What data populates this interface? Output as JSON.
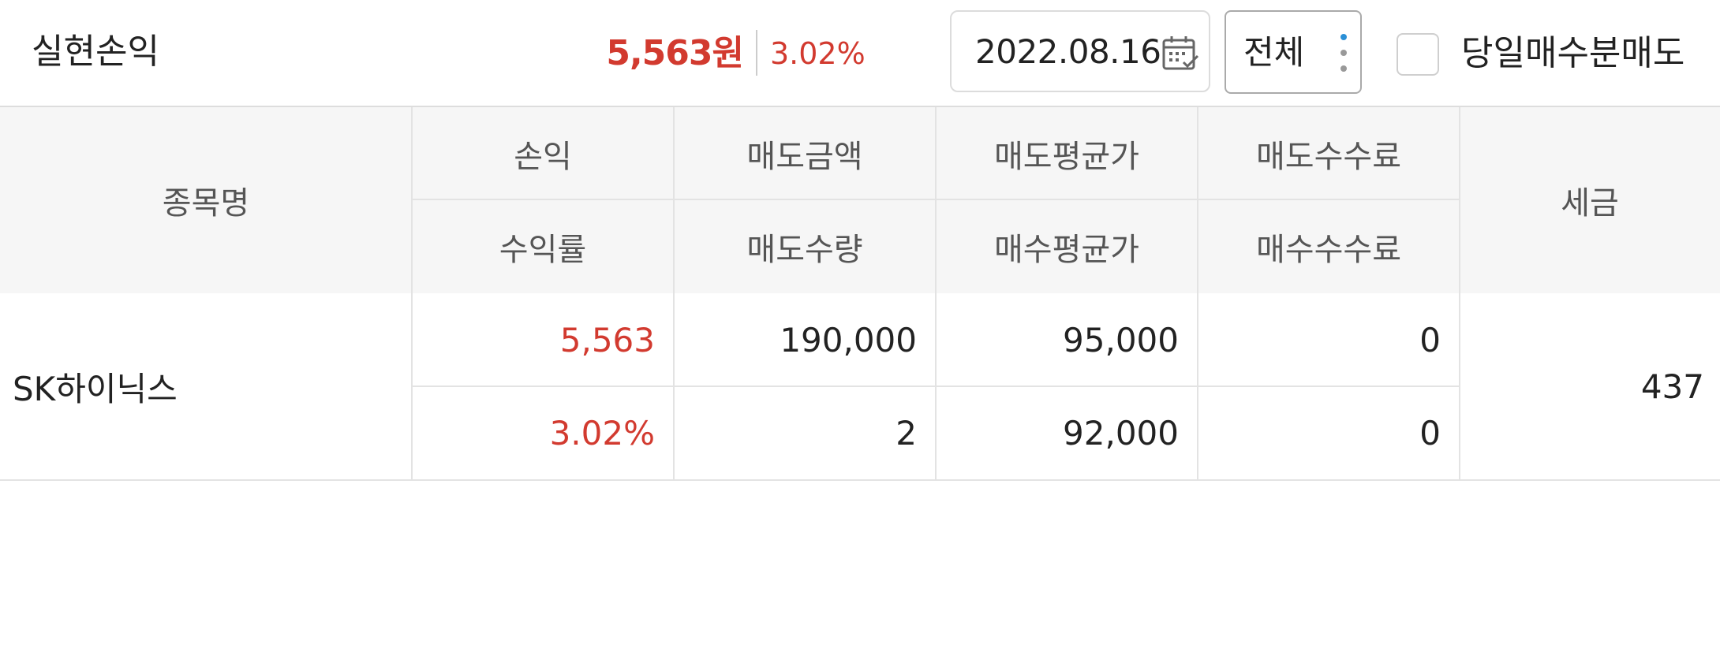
{
  "header": {
    "title": "실현손익",
    "profit_amount": "5,563원",
    "profit_rate": "3.02%",
    "date": "2022.08.16",
    "filter": "전체",
    "checkbox_label": "당일매수분매도",
    "checkbox_checked": false
  },
  "table": {
    "columns": {
      "name": "종목명",
      "profit": "손익",
      "return_rate": "수익률",
      "sell_amount": "매도금액",
      "sell_qty": "매도수량",
      "sell_avg_price": "매도평균가",
      "buy_avg_price": "매수평균가",
      "sell_fee": "매도수수료",
      "buy_fee": "매수수수료",
      "tax": "세금"
    },
    "rows": [
      {
        "name": "SK하이닉스",
        "profit": "5,563",
        "return_rate": "3.02%",
        "sell_amount": "190,000",
        "sell_qty": "2",
        "sell_avg_price": "95,000",
        "buy_avg_price": "92,000",
        "sell_fee": "0",
        "buy_fee": "0",
        "tax": "437"
      }
    ]
  },
  "colors": {
    "profit_red": "#d23a2f",
    "header_bg": "#f6f6f6",
    "accent_blue": "#2a8fd6"
  },
  "icons": {
    "calendar": "calendar-icon",
    "more": "kebab-menu-icon"
  }
}
